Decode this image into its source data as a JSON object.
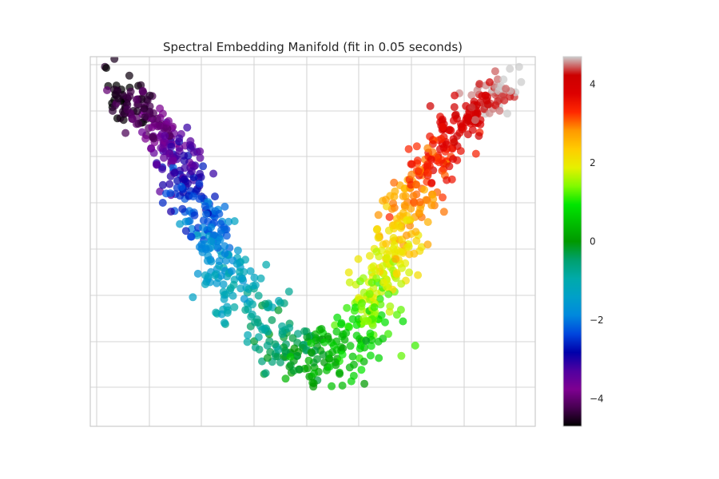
{
  "chart_data": {
    "type": "scatter",
    "title": "Spectral Embedding Manifold (fit in 0.05 seconds)",
    "xlabel": "",
    "ylabel": "",
    "grid": true,
    "x_ticks_labeled": false,
    "y_ticks_labeled": false,
    "colormap": "nipy_spectral",
    "color_range": [
      -4.7,
      4.7
    ],
    "colorbar": {
      "ticks": [
        4,
        2,
        0,
        -2,
        -4
      ],
      "tick_labels": [
        "4",
        "2",
        "0",
        "−2",
        "−4"
      ],
      "placement": "right"
    },
    "point_count": 1000,
    "manifold_shape": "V-shaped curve: left arm descends from upper-left (low color values, black/purple) to a trough near lower-center (green, values near 0), right arm rises to upper-right (high values, red/grey)"
  }
}
